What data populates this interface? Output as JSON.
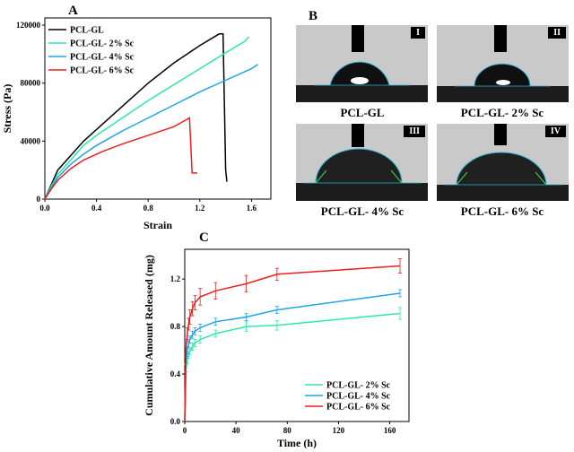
{
  "panels": {
    "a": {
      "letter": "A"
    },
    "b": {
      "letter": "B",
      "images": [
        {
          "roman": "I",
          "caption": "PCL-GL"
        },
        {
          "roman": "II",
          "caption": "PCL-GL- 2% Sc"
        },
        {
          "roman": "III",
          "caption": "PCL-GL- 4% Sc"
        },
        {
          "roman": "IV",
          "caption": "PCL-GL- 6% Sc"
        }
      ]
    },
    "c": {
      "letter": "C"
    }
  },
  "chart_data": [
    {
      "type": "line",
      "panel": "A",
      "xlabel": "Strain",
      "ylabel": "Stress (Pa)",
      "xlim": [
        0,
        1.75
      ],
      "ylim": [
        0,
        125000
      ],
      "xticks": [
        "0.0",
        "0.4",
        "0.8",
        "1.2",
        "1.6"
      ],
      "yticks": [
        "0",
        "40000",
        "80000",
        "120000"
      ],
      "legend_position": "top-left",
      "series": [
        {
          "name": "PCL-GL",
          "color": "#000000",
          "x": [
            0,
            0.05,
            0.1,
            0.2,
            0.3,
            0.4,
            0.6,
            0.8,
            1.0,
            1.2,
            1.35,
            1.38,
            1.4,
            1.41
          ],
          "y": [
            0,
            10000,
            20000,
            30000,
            40000,
            48000,
            64000,
            80000,
            94000,
            106000,
            114000,
            114000,
            20000,
            12000
          ]
        },
        {
          "name": "PCL-GL- 2% Sc",
          "color": "#2EE8A8",
          "x": [
            0,
            0.05,
            0.1,
            0.2,
            0.3,
            0.4,
            0.6,
            0.8,
            1.0,
            1.2,
            1.4,
            1.55,
            1.58
          ],
          "y": [
            0,
            9000,
            17000,
            27000,
            37000,
            44000,
            56000,
            68000,
            79000,
            90000,
            101000,
            109000,
            112000
          ]
        },
        {
          "name": "PCL-GL- 4% Sc",
          "color": "#1EA6E8",
          "x": [
            0,
            0.05,
            0.1,
            0.2,
            0.3,
            0.4,
            0.6,
            0.8,
            1.0,
            1.2,
            1.4,
            1.6,
            1.65
          ],
          "y": [
            0,
            8000,
            15000,
            24000,
            31000,
            37000,
            47000,
            56000,
            65000,
            74000,
            82000,
            90000,
            93000
          ]
        },
        {
          "name": "PCL-GL- 6% Sc",
          "color": "#E8201E",
          "x": [
            0,
            0.05,
            0.1,
            0.2,
            0.3,
            0.45,
            0.6,
            0.8,
            1.0,
            1.1,
            1.12,
            1.14,
            1.18
          ],
          "y": [
            0,
            7000,
            13000,
            21000,
            27000,
            33000,
            38000,
            44000,
            50000,
            55000,
            56000,
            18000,
            18000
          ]
        }
      ]
    },
    {
      "type": "line",
      "panel": "C",
      "xlabel": "Time (h)",
      "ylabel": "Cumulative Amount Released (mg)",
      "xlim": [
        0,
        175
      ],
      "ylim": [
        0,
        1.45
      ],
      "xticks": [
        "0",
        "40",
        "80",
        "120",
        "160"
      ],
      "yticks": [
        "0.0",
        "0.4",
        "0.8",
        "1.2"
      ],
      "legend_position": "bottom-right",
      "series": [
        {
          "name": "PCL-GL- 2% Sc",
          "color": "#2EE8A8",
          "x": [
            0,
            1,
            2,
            3,
            4,
            6,
            8,
            12,
            24,
            48,
            72,
            168
          ],
          "y": [
            0,
            0.45,
            0.52,
            0.56,
            0.59,
            0.63,
            0.66,
            0.69,
            0.74,
            0.8,
            0.81,
            0.91
          ],
          "err": [
            0,
            0.03,
            0.03,
            0.03,
            0.03,
            0.03,
            0.03,
            0.03,
            0.03,
            0.04,
            0.04,
            0.05
          ]
        },
        {
          "name": "PCL-GL- 4% Sc",
          "color": "#1EA6E8",
          "x": [
            0,
            1,
            2,
            3,
            4,
            6,
            8,
            12,
            24,
            48,
            72,
            168
          ],
          "y": [
            0,
            0.52,
            0.6,
            0.65,
            0.69,
            0.73,
            0.76,
            0.79,
            0.84,
            0.88,
            0.94,
            1.08
          ],
          "err": [
            0,
            0.03,
            0.03,
            0.03,
            0.03,
            0.03,
            0.03,
            0.03,
            0.03,
            0.03,
            0.03,
            0.03
          ]
        },
        {
          "name": "PCL-GL- 6% Sc",
          "color": "#E8201E",
          "x": [
            0,
            1,
            2,
            3,
            4,
            6,
            8,
            12,
            24,
            48,
            72,
            168
          ],
          "y": [
            0,
            0.62,
            0.74,
            0.82,
            0.88,
            0.95,
            1.0,
            1.05,
            1.1,
            1.16,
            1.24,
            1.31
          ],
          "err": [
            0,
            0.05,
            0.05,
            0.05,
            0.06,
            0.06,
            0.06,
            0.07,
            0.07,
            0.07,
            0.05,
            0.06
          ]
        }
      ]
    }
  ]
}
